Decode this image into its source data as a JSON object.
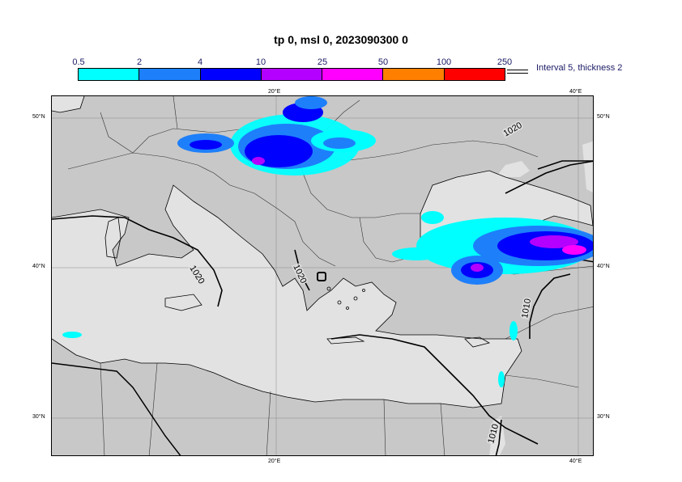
{
  "title": "tp 0, msl 0, 2023090300 0",
  "legend": {
    "labels": [
      "0.5",
      "2",
      "4",
      "10",
      "25",
      "50",
      "100",
      "250"
    ],
    "colors": [
      "#00ffff",
      "#1e7ffa",
      "#0000ff",
      "#b400ff",
      "#ff00ff",
      "#ff7f00",
      "#ff0000"
    ],
    "note": "Interval 5, thickness 2"
  },
  "map": {
    "colors": {
      "land": "#c8c8c8",
      "sea": "#e2e2e2",
      "coast": "#000000",
      "grid": "#888888"
    },
    "lon_labels": [
      "20°E",
      "40°E"
    ],
    "lat_labels": [
      "50°N",
      "40°N",
      "30°N"
    ],
    "isobar_labels": [
      "1020",
      "1020",
      "1020",
      "1010",
      "1010"
    ]
  }
}
